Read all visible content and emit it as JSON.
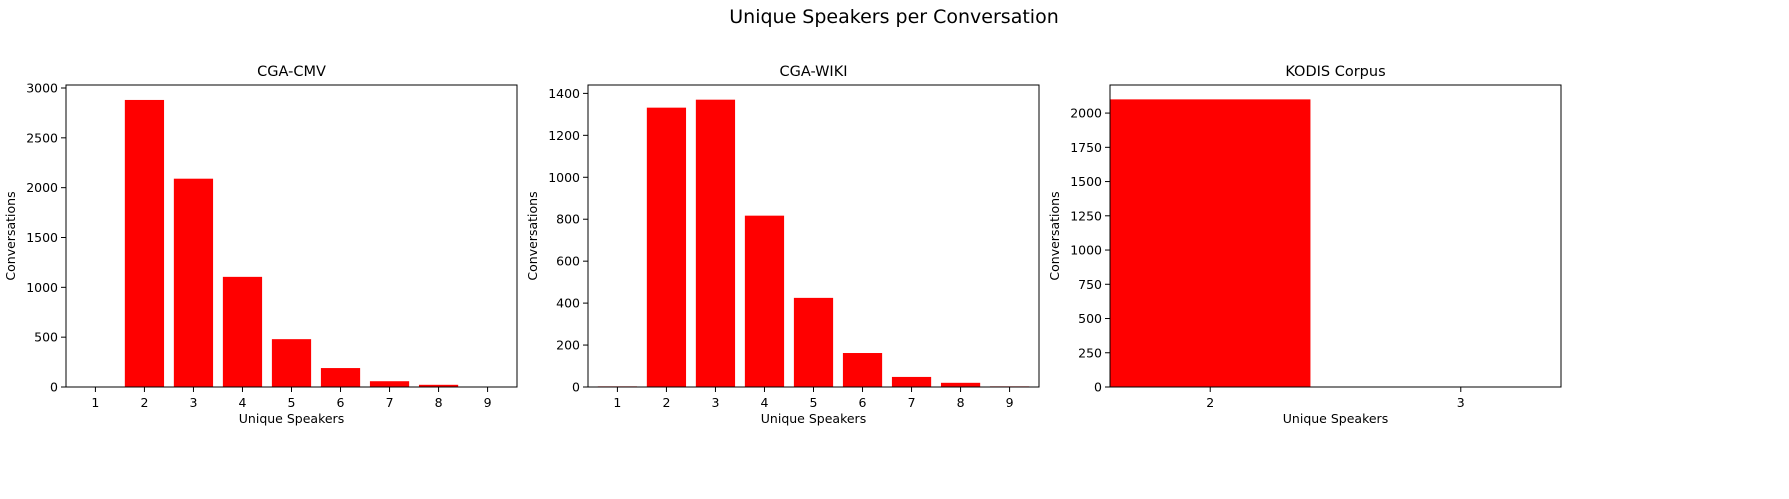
{
  "figure": {
    "suptitle": "Unique Speakers per Conversation"
  },
  "colors": {
    "bar": "#ff0000",
    "axis": "#000000",
    "background": "#ffffff"
  },
  "chart_data": [
    {
      "type": "bar",
      "title": "CGA-CMV",
      "xlabel": "Unique Speakers",
      "ylabel": "Conversations",
      "categories": [
        1,
        2,
        3,
        4,
        5,
        6,
        7,
        8,
        9
      ],
      "values": [
        5,
        2880,
        2090,
        1105,
        480,
        190,
        58,
        22,
        5
      ],
      "ylim": [
        0,
        3030
      ],
      "yticks": [
        0,
        500,
        1000,
        1500,
        2000,
        2500,
        3000
      ],
      "xlim": [
        0.4,
        9.6
      ],
      "bar_width": 0.8,
      "grid": false
    },
    {
      "type": "bar",
      "title": "CGA-WIKI",
      "xlabel": "Unique Speakers",
      "ylabel": "Conversations",
      "categories": [
        1,
        2,
        3,
        4,
        5,
        6,
        7,
        8,
        9
      ],
      "values": [
        3,
        1332,
        1370,
        817,
        425,
        162,
        48,
        20,
        3
      ],
      "ylim": [
        0,
        1440
      ],
      "yticks": [
        0,
        200,
        400,
        600,
        800,
        1000,
        1200,
        1400
      ],
      "xlim": [
        0.4,
        9.6
      ],
      "bar_width": 0.8,
      "grid": false
    },
    {
      "type": "bar",
      "title": "KODIS Corpus",
      "xlabel": "Unique Speakers",
      "ylabel": "Conversations",
      "categories": [
        2,
        3
      ],
      "values": [
        2100,
        1
      ],
      "ylim": [
        0,
        2205
      ],
      "yticks": [
        0,
        250,
        500,
        750,
        1000,
        1250,
        1500,
        1750,
        2000
      ],
      "xlim": [
        1.6,
        3.4
      ],
      "bar_width": 0.8,
      "grid": false
    }
  ]
}
